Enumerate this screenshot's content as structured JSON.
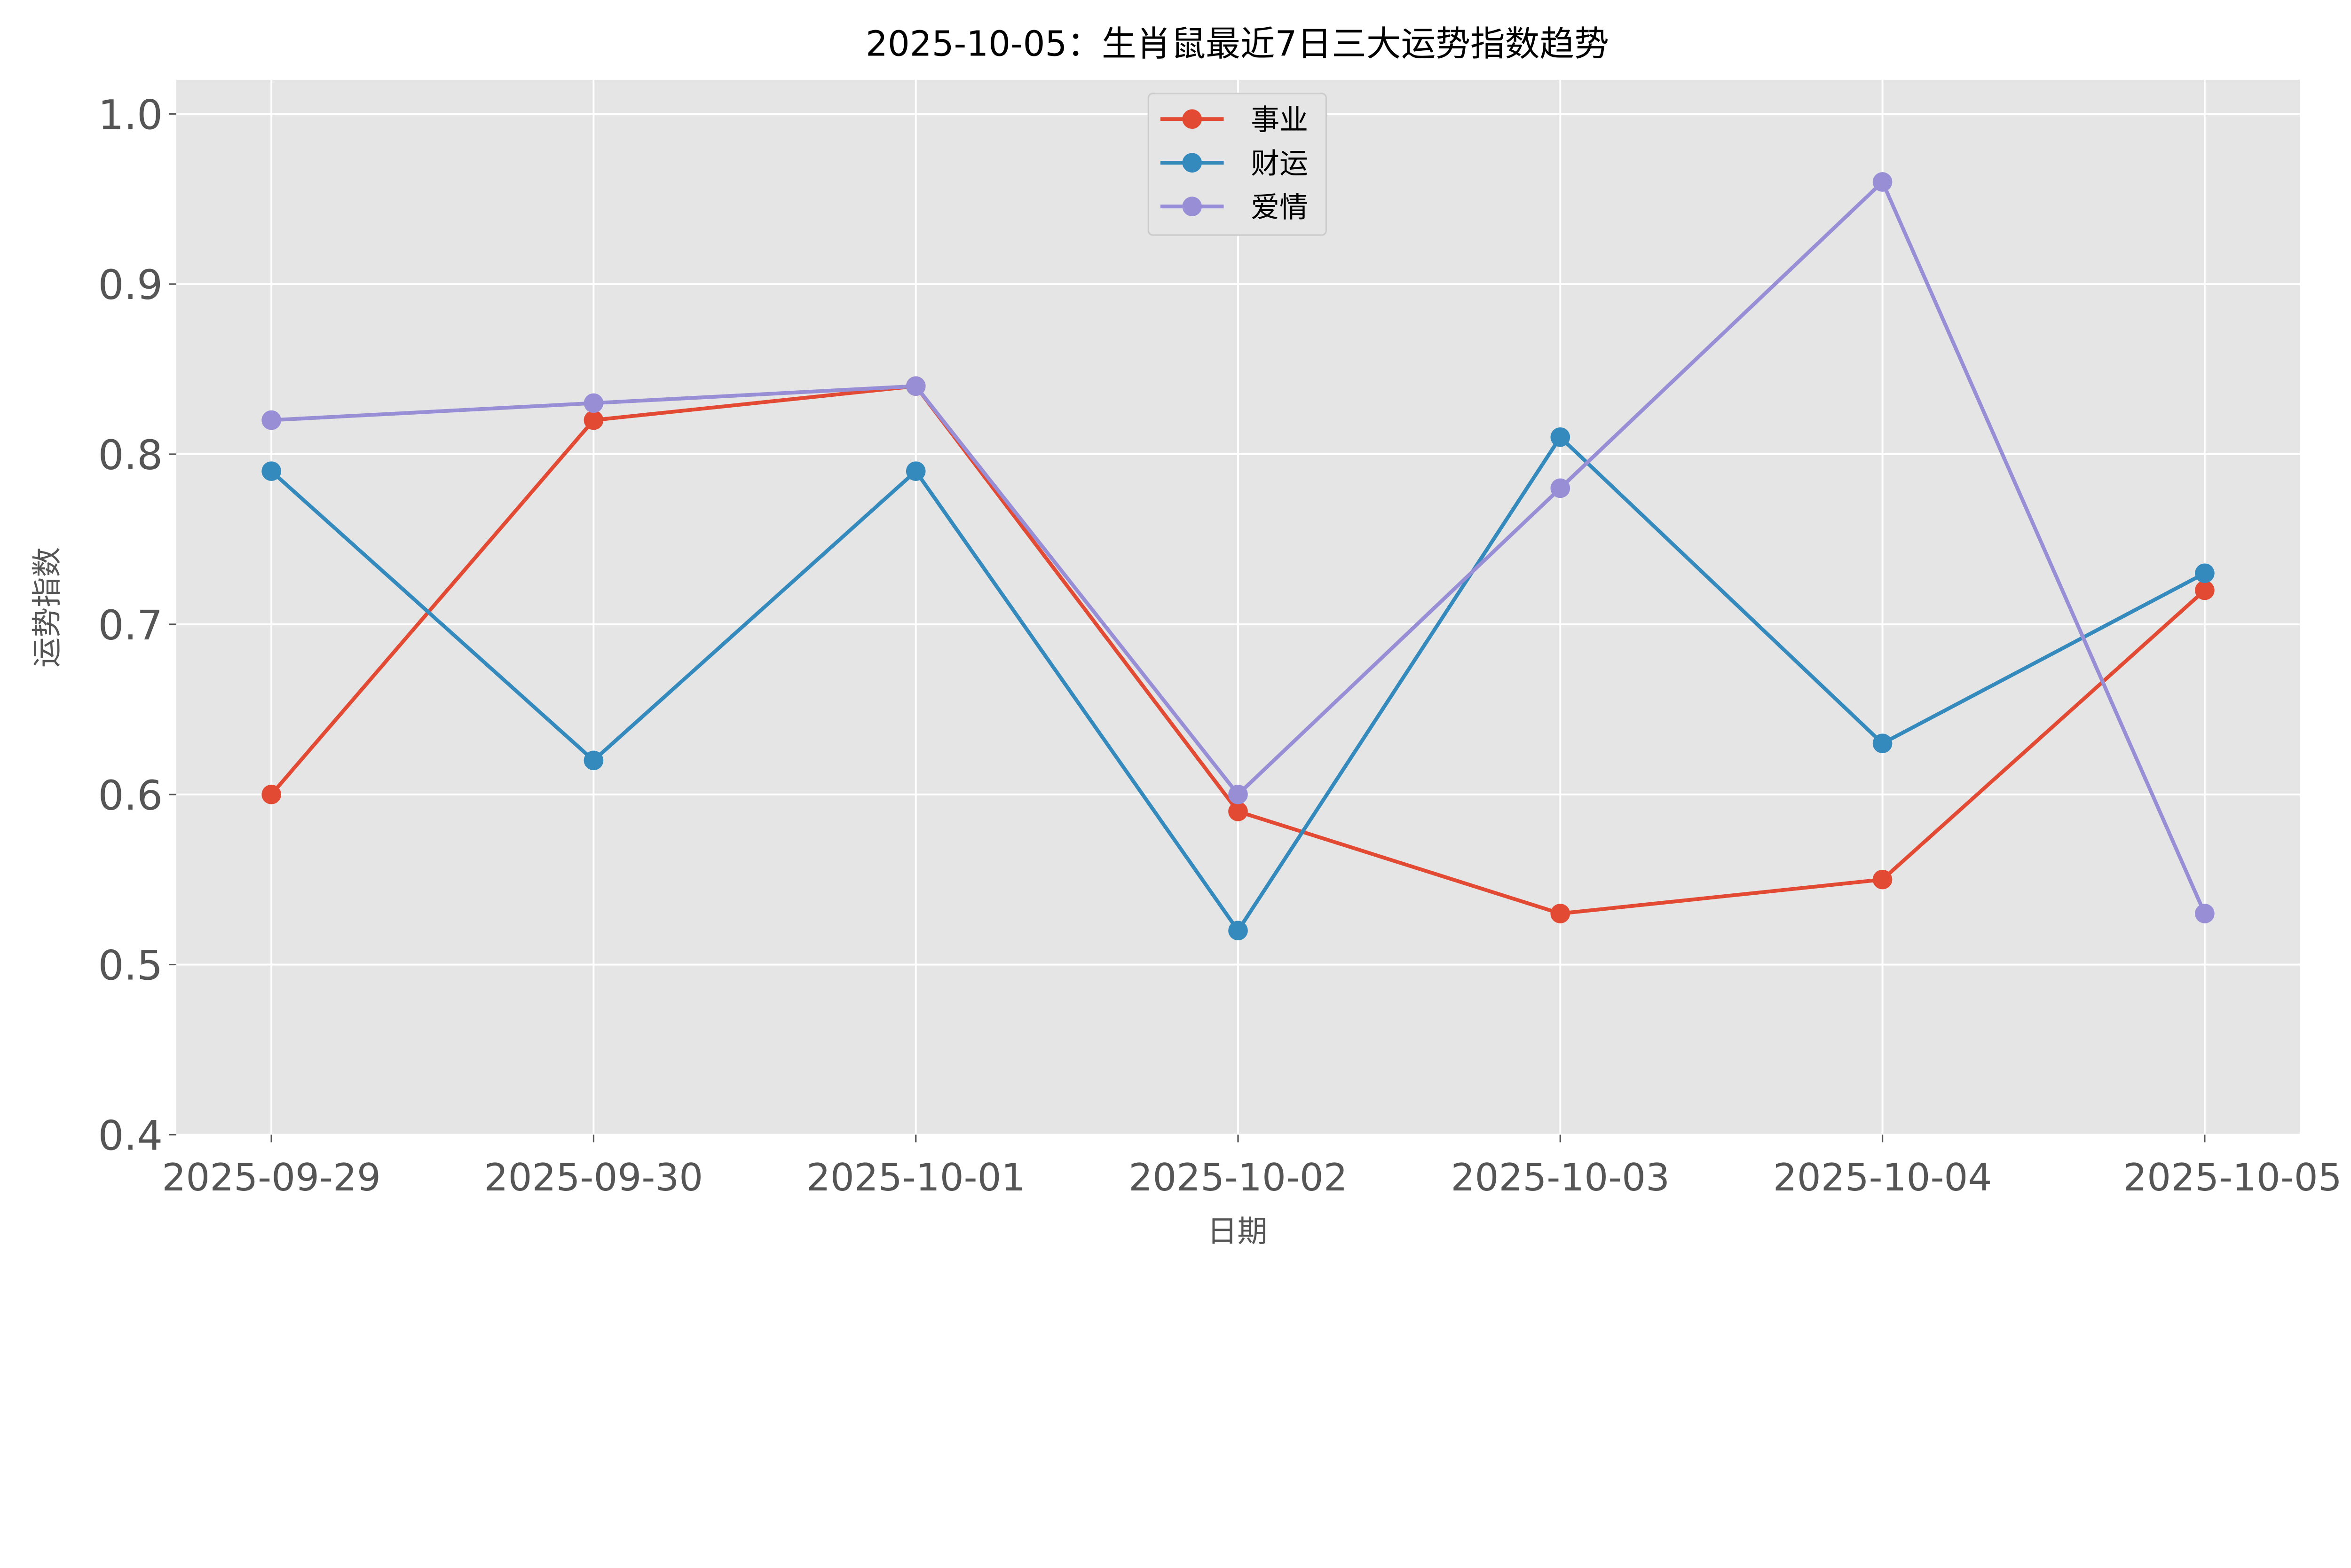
{
  "chart_data": {
    "type": "line",
    "title": "2025-10-05：生肖鼠最近7日三大运势指数趋势",
    "xlabel": "日期",
    "ylabel": "运势指数",
    "categories": [
      "2025-09-29",
      "2025-09-30",
      "2025-10-01",
      "2025-10-02",
      "2025-10-03",
      "2025-10-04",
      "2025-10-05"
    ],
    "ylim": [
      0.4,
      1.02
    ],
    "yticks": [
      "0.4",
      "0.5",
      "0.6",
      "0.7",
      "0.8",
      "0.9",
      "1.0"
    ],
    "grid": true,
    "legend_position": "upper-center",
    "series": [
      {
        "name": "事业",
        "color": "#E24A33",
        "values": [
          0.6,
          0.82,
          0.84,
          0.59,
          0.53,
          0.55,
          0.72
        ]
      },
      {
        "name": "财运",
        "color": "#348ABD",
        "values": [
          0.79,
          0.62,
          0.79,
          0.52,
          0.81,
          0.63,
          0.73
        ]
      },
      {
        "name": "爱情",
        "color": "#988ED5",
        "values": [
          0.82,
          0.83,
          0.84,
          0.6,
          0.78,
          0.96,
          0.53
        ]
      }
    ]
  }
}
